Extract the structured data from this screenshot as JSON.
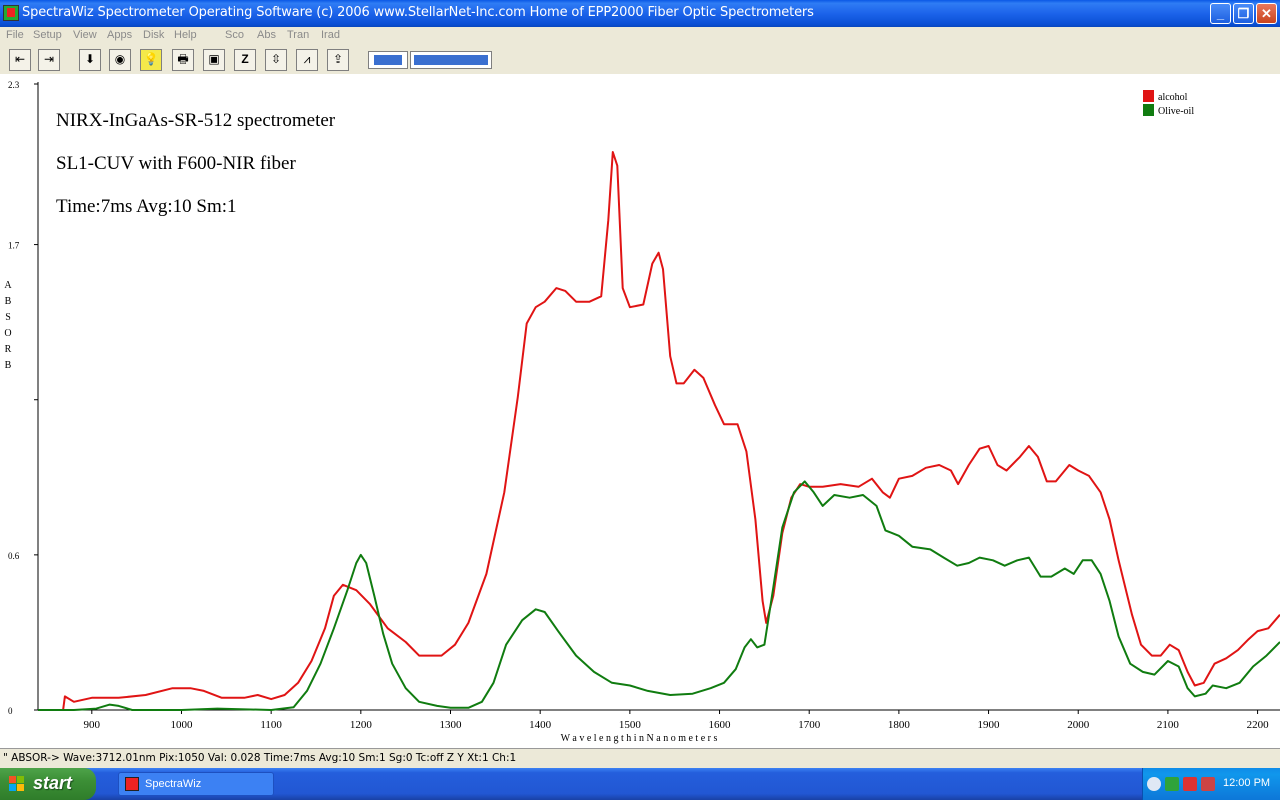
{
  "window": {
    "title": "SpectraWiz  Spectrometer Operating Software (c) 2006  www.StellarNet-Inc.com  Home of EPP2000 Fiber Optic Spectrometers",
    "controls": [
      "minimize",
      "restore",
      "close"
    ]
  },
  "menu": [
    "File",
    "Setup",
    "View",
    "Apps",
    "Disk",
    "Help",
    "Sco",
    "Abs",
    "Tran",
    "Irad"
  ],
  "toolbar": {
    "buttons": [
      {
        "name": "scroll-left-icon",
        "glyph": "⇤"
      },
      {
        "name": "scroll-right-icon",
        "glyph": "⇥"
      },
      {
        "name": "store-icon",
        "glyph": "⬇"
      },
      {
        "name": "dark-icon",
        "glyph": "◉"
      },
      {
        "name": "lamp-icon",
        "glyph": "💡"
      },
      {
        "name": "printer-icon",
        "glyph": "🖶"
      },
      {
        "name": "camera-icon",
        "glyph": "▣"
      },
      {
        "name": "zoom-icon",
        "glyph": "Z"
      },
      {
        "name": "autoscale-icon",
        "glyph": "⇳"
      },
      {
        "name": "peaks-icon",
        "glyph": "⩘"
      },
      {
        "name": "export-icon",
        "glyph": "⇪"
      }
    ]
  },
  "annotations": [
    "NIRX-InGaAs-SR-512 spectrometer",
    "SL1-CUV with F600-NIR fiber",
    "Time:7ms  Avg:10  Sm:1"
  ],
  "status_text": "\" ABSOR->  Wave:3712.01nm  Pix:1050  Val:  0.028 Time:7ms  Avg:10  Sm:1  Sg:0  Tc:off  Z Y  Xt:1  Ch:1",
  "taskbar": {
    "start": "start",
    "task": "SpectraWiz",
    "clock": "12:00 PM"
  },
  "colors": {
    "alcohol": "#e01414",
    "olive_oil": "#107c10",
    "taskbar": "#245edc"
  },
  "chart_data": {
    "type": "line",
    "xlabel": "W a v e l e n g t h   i n   N a n o m e t e r s",
    "ylabel": "ABSORB",
    "xlim": [
      840,
      2225
    ],
    "ylim": [
      0,
      2.3
    ],
    "xticks": [
      900,
      1000,
      1100,
      1200,
      1300,
      1400,
      1500,
      1600,
      1700,
      1800,
      1900,
      2000,
      2100,
      2200
    ],
    "yticks": [
      {
        "v": 0,
        "label": "0"
      },
      {
        "v": 0.57,
        "label": "0.6"
      },
      {
        "v": 1.14,
        "label": ""
      },
      {
        "v": 1.71,
        "label": "1.7"
      },
      {
        "v": 2.3,
        "label": "2.3"
      }
    ],
    "legend_position": "top-right",
    "series": [
      {
        "name": "alcohol",
        "color": "#e01414",
        "points": [
          [
            840,
            0
          ],
          [
            868,
            0
          ],
          [
            870,
            0.05
          ],
          [
            880,
            0.03
          ],
          [
            900,
            0.045
          ],
          [
            930,
            0.045
          ],
          [
            960,
            0.055
          ],
          [
            990,
            0.08
          ],
          [
            1010,
            0.08
          ],
          [
            1025,
            0.07
          ],
          [
            1045,
            0.045
          ],
          [
            1070,
            0.045
          ],
          [
            1085,
            0.055
          ],
          [
            1100,
            0.04
          ],
          [
            1115,
            0.055
          ],
          [
            1130,
            0.1
          ],
          [
            1145,
            0.18
          ],
          [
            1160,
            0.3
          ],
          [
            1170,
            0.42
          ],
          [
            1180,
            0.46
          ],
          [
            1195,
            0.44
          ],
          [
            1210,
            0.39
          ],
          [
            1230,
            0.3
          ],
          [
            1250,
            0.25
          ],
          [
            1265,
            0.2
          ],
          [
            1290,
            0.2
          ],
          [
            1305,
            0.24
          ],
          [
            1320,
            0.32
          ],
          [
            1340,
            0.5
          ],
          [
            1360,
            0.8
          ],
          [
            1375,
            1.15
          ],
          [
            1385,
            1.42
          ],
          [
            1395,
            1.48
          ],
          [
            1405,
            1.5
          ],
          [
            1418,
            1.55
          ],
          [
            1428,
            1.54
          ],
          [
            1440,
            1.5
          ],
          [
            1455,
            1.5
          ],
          [
            1468,
            1.52
          ],
          [
            1476,
            1.8
          ],
          [
            1481,
            2.05
          ],
          [
            1486,
            2.0
          ],
          [
            1492,
            1.55
          ],
          [
            1500,
            1.48
          ],
          [
            1515,
            1.49
          ],
          [
            1525,
            1.64
          ],
          [
            1532,
            1.68
          ],
          [
            1537,
            1.62
          ],
          [
            1545,
            1.3
          ],
          [
            1552,
            1.2
          ],
          [
            1560,
            1.2
          ],
          [
            1572,
            1.25
          ],
          [
            1582,
            1.22
          ],
          [
            1595,
            1.12
          ],
          [
            1605,
            1.05
          ],
          [
            1620,
            1.05
          ],
          [
            1630,
            0.95
          ],
          [
            1640,
            0.7
          ],
          [
            1648,
            0.4
          ],
          [
            1652,
            0.32
          ],
          [
            1660,
            0.42
          ],
          [
            1670,
            0.65
          ],
          [
            1680,
            0.78
          ],
          [
            1690,
            0.83
          ],
          [
            1700,
            0.82
          ],
          [
            1715,
            0.82
          ],
          [
            1735,
            0.83
          ],
          [
            1755,
            0.82
          ],
          [
            1770,
            0.85
          ],
          [
            1782,
            0.8
          ],
          [
            1790,
            0.78
          ],
          [
            1800,
            0.85
          ],
          [
            1815,
            0.86
          ],
          [
            1830,
            0.89
          ],
          [
            1845,
            0.9
          ],
          [
            1858,
            0.88
          ],
          [
            1866,
            0.83
          ],
          [
            1878,
            0.9
          ],
          [
            1890,
            0.96
          ],
          [
            1900,
            0.97
          ],
          [
            1910,
            0.9
          ],
          [
            1920,
            0.88
          ],
          [
            1935,
            0.93
          ],
          [
            1945,
            0.97
          ],
          [
            1955,
            0.93
          ],
          [
            1965,
            0.84
          ],
          [
            1975,
            0.84
          ],
          [
            1990,
            0.9
          ],
          [
            2000,
            0.88
          ],
          [
            2012,
            0.86
          ],
          [
            2025,
            0.8
          ],
          [
            2035,
            0.7
          ],
          [
            2045,
            0.55
          ],
          [
            2060,
            0.35
          ],
          [
            2070,
            0.24
          ],
          [
            2082,
            0.2
          ],
          [
            2092,
            0.2
          ],
          [
            2102,
            0.24
          ],
          [
            2112,
            0.22
          ],
          [
            2122,
            0.14
          ],
          [
            2130,
            0.09
          ],
          [
            2140,
            0.1
          ],
          [
            2152,
            0.17
          ],
          [
            2165,
            0.19
          ],
          [
            2178,
            0.22
          ],
          [
            2190,
            0.26
          ],
          [
            2200,
            0.29
          ],
          [
            2212,
            0.3
          ],
          [
            2225,
            0.35
          ]
        ]
      },
      {
        "name": "Olive-oil",
        "color": "#107c10",
        "points": [
          [
            840,
            0
          ],
          [
            880,
            0
          ],
          [
            905,
            0.005
          ],
          [
            920,
            0.02
          ],
          [
            930,
            0.015
          ],
          [
            945,
            0
          ],
          [
            1000,
            0
          ],
          [
            1040,
            0.005
          ],
          [
            1100,
            0
          ],
          [
            1125,
            0.01
          ],
          [
            1140,
            0.07
          ],
          [
            1155,
            0.17
          ],
          [
            1170,
            0.3
          ],
          [
            1185,
            0.44
          ],
          [
            1195,
            0.54
          ],
          [
            1200,
            0.57
          ],
          [
            1206,
            0.54
          ],
          [
            1215,
            0.42
          ],
          [
            1225,
            0.28
          ],
          [
            1235,
            0.17
          ],
          [
            1250,
            0.08
          ],
          [
            1265,
            0.03
          ],
          [
            1285,
            0.015
          ],
          [
            1300,
            0.008
          ],
          [
            1320,
            0.008
          ],
          [
            1335,
            0.03
          ],
          [
            1348,
            0.1
          ],
          [
            1362,
            0.24
          ],
          [
            1380,
            0.33
          ],
          [
            1395,
            0.37
          ],
          [
            1405,
            0.36
          ],
          [
            1420,
            0.29
          ],
          [
            1440,
            0.2
          ],
          [
            1460,
            0.14
          ],
          [
            1480,
            0.1
          ],
          [
            1500,
            0.09
          ],
          [
            1520,
            0.07
          ],
          [
            1545,
            0.055
          ],
          [
            1570,
            0.06
          ],
          [
            1590,
            0.08
          ],
          [
            1605,
            0.1
          ],
          [
            1618,
            0.15
          ],
          [
            1628,
            0.23
          ],
          [
            1635,
            0.26
          ],
          [
            1642,
            0.23
          ],
          [
            1650,
            0.24
          ],
          [
            1660,
            0.45
          ],
          [
            1670,
            0.67
          ],
          [
            1683,
            0.8
          ],
          [
            1695,
            0.84
          ],
          [
            1705,
            0.8
          ],
          [
            1715,
            0.75
          ],
          [
            1728,
            0.79
          ],
          [
            1745,
            0.78
          ],
          [
            1760,
            0.79
          ],
          [
            1775,
            0.75
          ],
          [
            1785,
            0.66
          ],
          [
            1800,
            0.64
          ],
          [
            1815,
            0.6
          ],
          [
            1835,
            0.59
          ],
          [
            1850,
            0.56
          ],
          [
            1865,
            0.53
          ],
          [
            1878,
            0.54
          ],
          [
            1890,
            0.56
          ],
          [
            1905,
            0.55
          ],
          [
            1918,
            0.53
          ],
          [
            1932,
            0.55
          ],
          [
            1945,
            0.56
          ],
          [
            1958,
            0.49
          ],
          [
            1970,
            0.49
          ],
          [
            1985,
            0.52
          ],
          [
            1995,
            0.5
          ],
          [
            2005,
            0.55
          ],
          [
            2015,
            0.55
          ],
          [
            2025,
            0.5
          ],
          [
            2035,
            0.4
          ],
          [
            2045,
            0.27
          ],
          [
            2058,
            0.17
          ],
          [
            2072,
            0.14
          ],
          [
            2085,
            0.13
          ],
          [
            2100,
            0.18
          ],
          [
            2112,
            0.16
          ],
          [
            2122,
            0.08
          ],
          [
            2130,
            0.05
          ],
          [
            2142,
            0.06
          ],
          [
            2150,
            0.09
          ],
          [
            2165,
            0.08
          ],
          [
            2180,
            0.1
          ],
          [
            2195,
            0.16
          ],
          [
            2210,
            0.2
          ],
          [
            2225,
            0.25
          ]
        ]
      }
    ]
  }
}
